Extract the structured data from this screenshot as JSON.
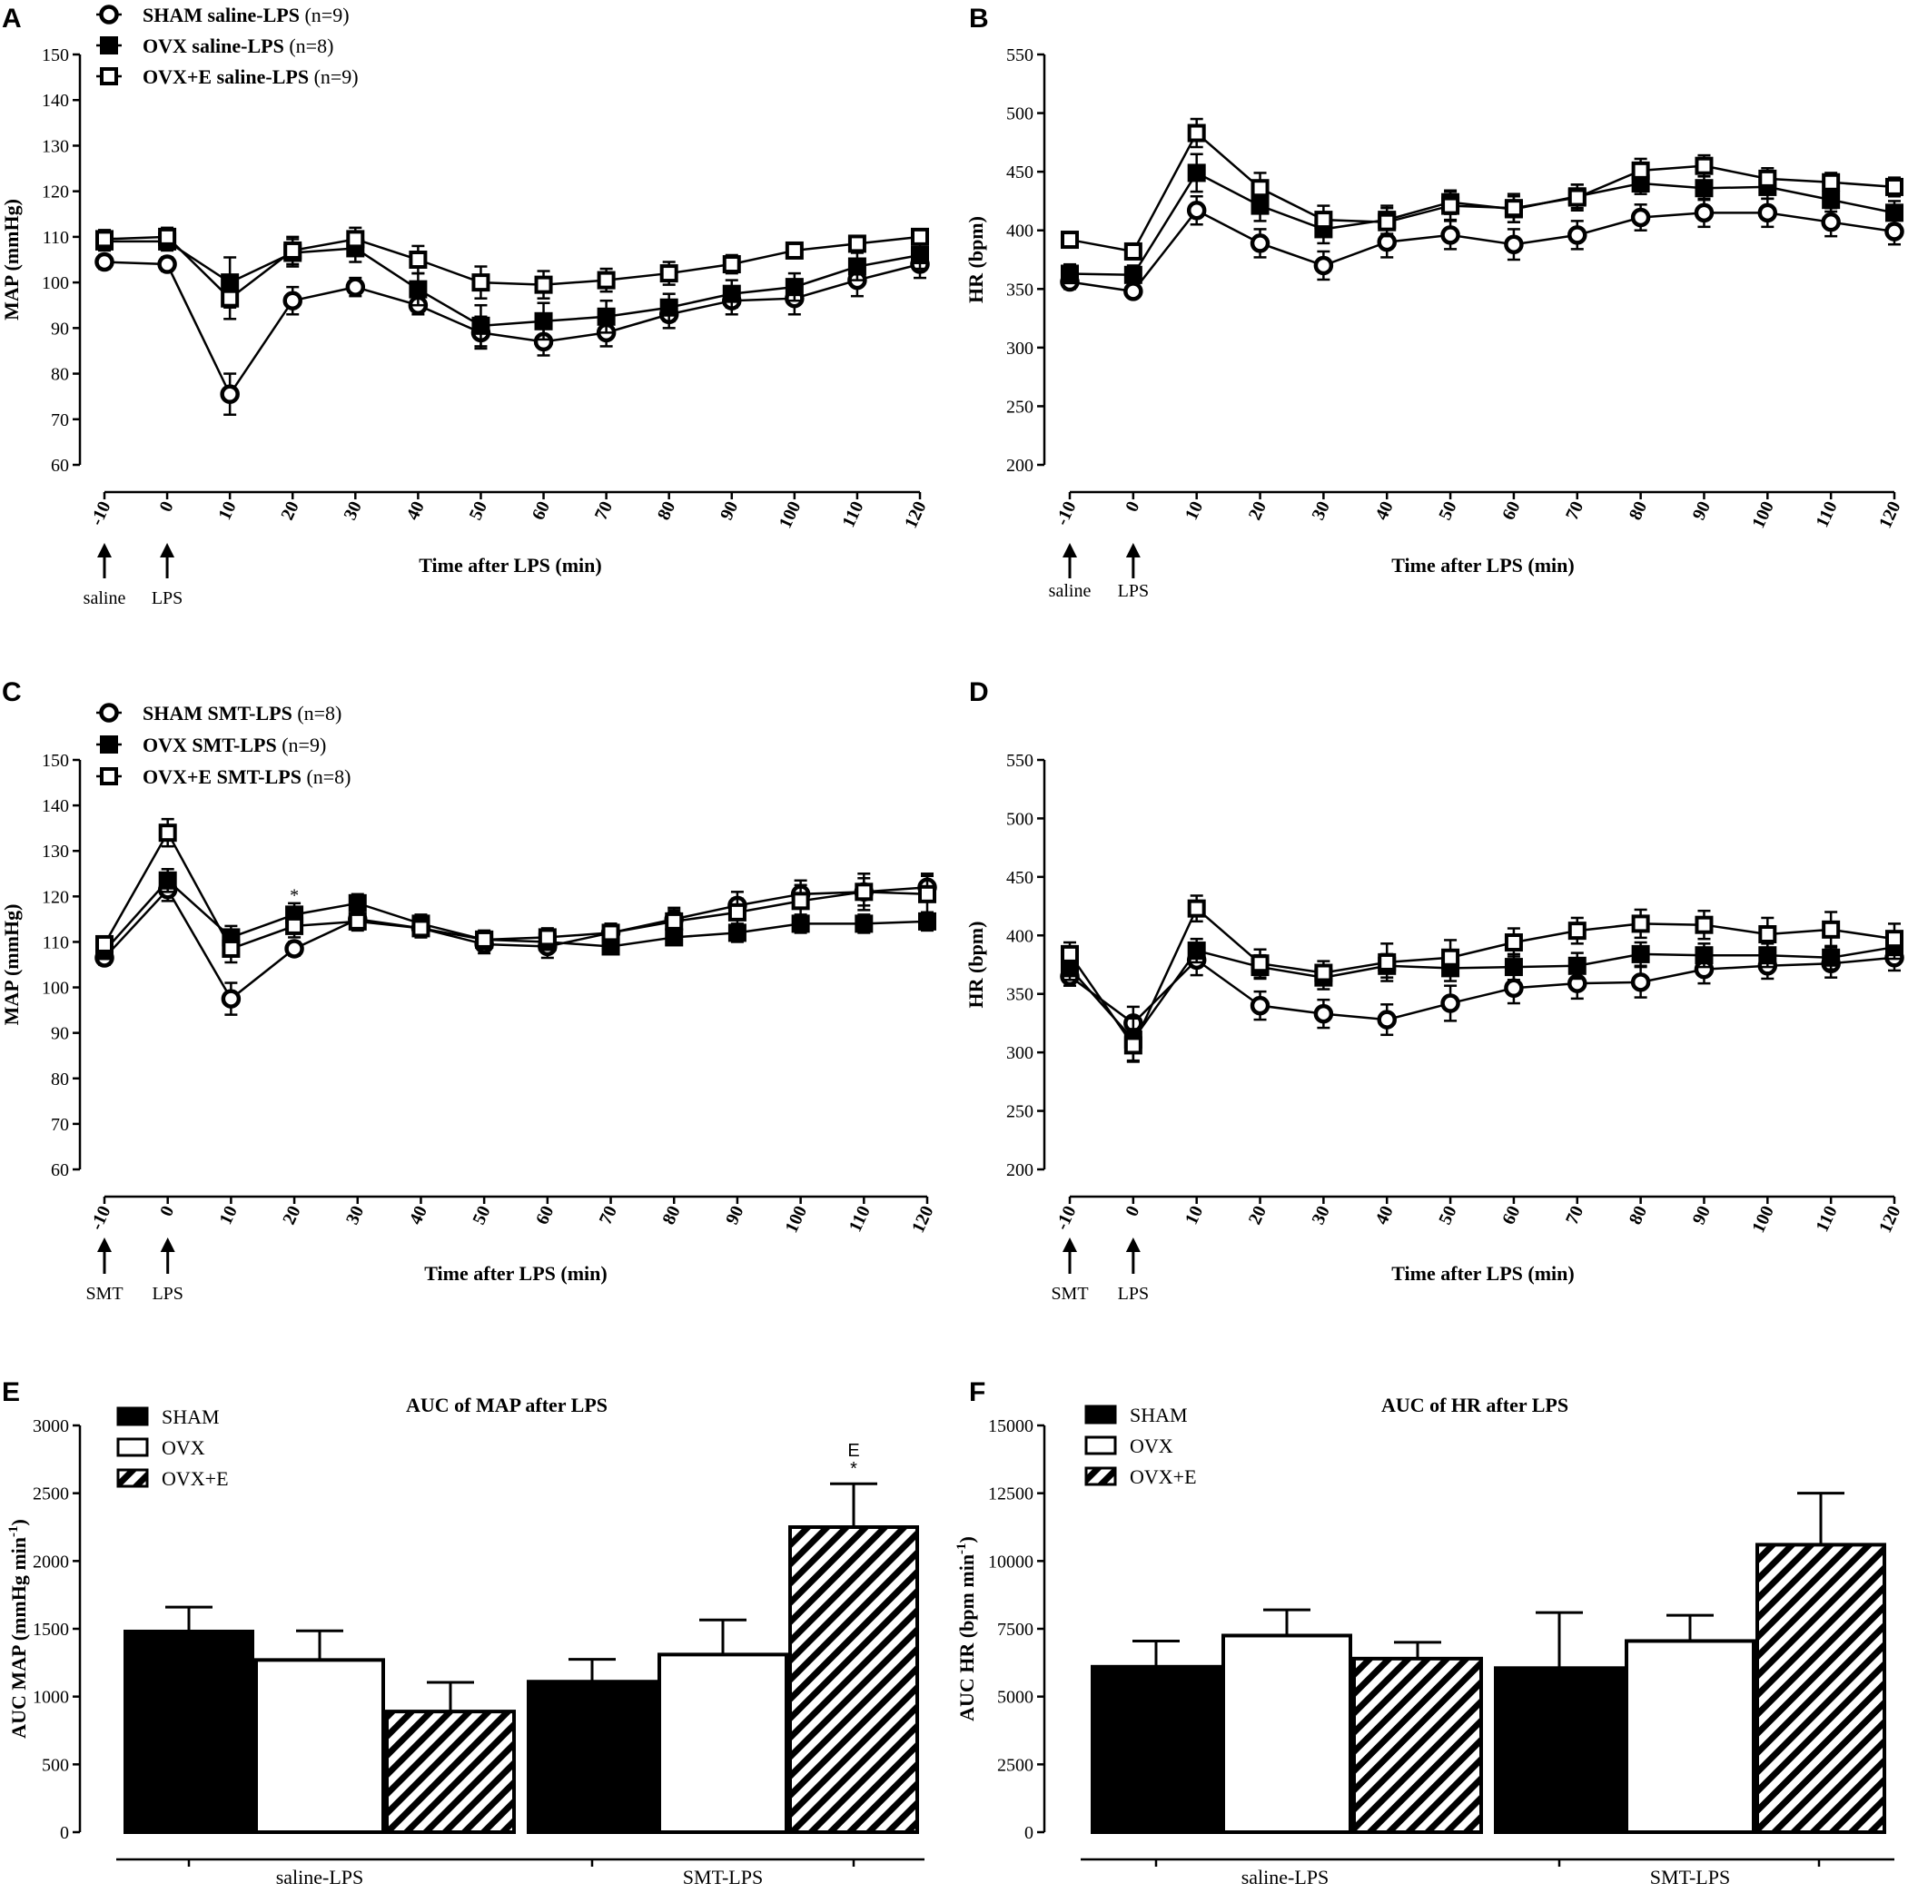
{
  "chart_data": [
    {
      "panel": "A",
      "type": "line",
      "ylabel": "MAP (mmHg)",
      "xlabel": "Time after LPS (min)",
      "ylim": [
        60,
        150
      ],
      "yticks": [
        60,
        70,
        80,
        90,
        100,
        110,
        120,
        130,
        140,
        150
      ],
      "x": [
        -10,
        0,
        10,
        20,
        30,
        40,
        50,
        60,
        70,
        80,
        90,
        100,
        110,
        120
      ],
      "x_tick_labels": [
        "-10",
        "0",
        "10",
        "20",
        "30",
        "40",
        "50",
        "60",
        "70",
        "80",
        "90",
        "100",
        "110",
        "120"
      ],
      "arrows": [
        {
          "x": -10,
          "label": "saline"
        },
        {
          "x": 0,
          "label": "LPS"
        }
      ],
      "series": [
        {
          "name": "SHAM saline-LPS",
          "n_label": "(n=9)",
          "marker": "circle",
          "values": [
            104.5,
            104,
            75.5,
            96,
            99,
            95,
            89,
            87,
            89,
            93,
            96,
            96.5,
            100.5,
            104
          ],
          "errors": [
            1.5,
            1.5,
            4.5,
            3,
            2,
            2,
            3.5,
            3,
            3,
            3,
            3,
            3.5,
            3.5,
            3
          ]
        },
        {
          "name": "OVX saline-LPS",
          "n_label": "(n=8)",
          "marker": "filled-square",
          "values": [
            109,
            109,
            100,
            106.5,
            107.5,
            98.5,
            90.5,
            91.5,
            92.5,
            94.5,
            97.5,
            99,
            103.5,
            106
          ],
          "errors": [
            2,
            2,
            5.5,
            3,
            3,
            3.5,
            4.5,
            4,
            3.5,
            3,
            3,
            3,
            3,
            3
          ]
        },
        {
          "name": "OVX+E saline-LPS",
          "n_label": "(n=9)",
          "marker": "open-square",
          "values": [
            109.5,
            110,
            96.5,
            107,
            109.5,
            105,
            100,
            99.5,
            100.5,
            102,
            104,
            107,
            108.5,
            110
          ],
          "errors": [
            2,
            2,
            4.5,
            3,
            2.5,
            3,
            3.5,
            3,
            2.5,
            2.5,
            2,
            1.5,
            1.5,
            1.5
          ]
        }
      ]
    },
    {
      "panel": "B",
      "type": "line",
      "ylabel": "HR (bpm)",
      "xlabel": "Time after LPS (min)",
      "ylim": [
        200,
        550
      ],
      "yticks": [
        200,
        250,
        300,
        350,
        400,
        450,
        500,
        550
      ],
      "x": [
        -10,
        0,
        10,
        20,
        30,
        40,
        50,
        60,
        70,
        80,
        90,
        100,
        110,
        120
      ],
      "x_tick_labels": [
        "-10",
        "0",
        "10",
        "20",
        "30",
        "40",
        "50",
        "60",
        "70",
        "80",
        "90",
        "100",
        "110",
        "120"
      ],
      "arrows": [
        {
          "x": -10,
          "label": "saline"
        },
        {
          "x": 0,
          "label": "LPS"
        }
      ],
      "series": [
        {
          "name": "SHAM saline-LPS",
          "marker": "circle",
          "values": [
            356,
            348,
            417,
            389,
            370,
            390,
            396,
            388,
            396,
            411,
            415,
            415,
            407,
            399
          ],
          "errors": [
            6,
            5,
            12,
            12,
            12,
            13,
            12,
            13,
            12,
            11,
            12,
            12,
            12,
            11
          ]
        },
        {
          "name": "OVX saline-LPS",
          "marker": "filled-square",
          "values": [
            363,
            362,
            449,
            421,
            401,
            409,
            424,
            418,
            429,
            440,
            436,
            437,
            426,
            415
          ],
          "errors": [
            8,
            8,
            16,
            13,
            12,
            12,
            10,
            11,
            10,
            9,
            10,
            10,
            10,
            10
          ]
        },
        {
          "name": "OVX+E saline-LPS",
          "marker": "open-square",
          "values": [
            392,
            382,
            483,
            436,
            409,
            407,
            421,
            419,
            428,
            451,
            455,
            444,
            441,
            437
          ],
          "errors": [
            6,
            6,
            12,
            13,
            12,
            12,
            12,
            12,
            11,
            10,
            9,
            9,
            8,
            8
          ]
        }
      ]
    },
    {
      "panel": "C",
      "type": "line",
      "ylabel": "MAP (mmHg)",
      "xlabel": "Time after LPS (min)",
      "ylim": [
        60,
        150
      ],
      "yticks": [
        60,
        70,
        80,
        90,
        100,
        110,
        120,
        130,
        140,
        150
      ],
      "x": [
        -10,
        0,
        10,
        20,
        30,
        40,
        50,
        60,
        70,
        80,
        90,
        100,
        110,
        120
      ],
      "x_tick_labels": [
        "-10",
        "0",
        "10",
        "20",
        "30",
        "40",
        "50",
        "60",
        "70",
        "80",
        "90",
        "100",
        "110",
        "120"
      ],
      "arrows": [
        {
          "x": -10,
          "label": "SMT"
        },
        {
          "x": 0,
          "label": "LPS"
        }
      ],
      "annotations": [
        {
          "x": 20,
          "y": 119,
          "text": "*"
        }
      ],
      "series": [
        {
          "name": "SHAM SMT-LPS",
          "n_label": "(n=8)",
          "marker": "circle",
          "values": [
            106.5,
            121.5,
            97.5,
            108.5,
            115,
            113,
            109.5,
            109,
            112,
            115,
            118,
            120.5,
            121,
            122
          ],
          "errors": [
            1.5,
            2.5,
            3.5,
            1.5,
            2,
            2,
            2,
            2.5,
            2,
            2.5,
            3,
            3,
            3,
            3
          ]
        },
        {
          "name": "OVX SMT-LPS",
          "n_label": "(n=9)",
          "marker": "filled-square",
          "values": [
            108,
            123.5,
            111,
            116,
            118.5,
            114,
            110.5,
            110,
            109,
            111,
            112,
            114,
            114,
            114.5
          ],
          "errors": [
            1.5,
            2.5,
            2.5,
            2.5,
            2,
            2,
            1.5,
            1.5,
            1.5,
            1.5,
            2,
            2,
            2,
            2
          ]
        },
        {
          "name": "OVX+E SMT-LPS",
          "n_label": "(n=8)",
          "marker": "open-square",
          "values": [
            109.5,
            134,
            108.5,
            113.5,
            114.5,
            113,
            110.5,
            111,
            112,
            114.5,
            116.5,
            119,
            121,
            120.5
          ],
          "errors": [
            1.5,
            3,
            3,
            2.5,
            2,
            2,
            2,
            2,
            2,
            2.5,
            3,
            3.5,
            4,
            4
          ]
        }
      ]
    },
    {
      "panel": "D",
      "type": "line",
      "ylabel": "HR (bpm)",
      "xlabel": "Time after LPS (min)",
      "ylim": [
        200,
        550
      ],
      "yticks": [
        200,
        250,
        300,
        350,
        400,
        450,
        500,
        550
      ],
      "x": [
        -10,
        0,
        10,
        20,
        30,
        40,
        50,
        60,
        70,
        80,
        90,
        100,
        110,
        120
      ],
      "x_tick_labels": [
        "-10",
        "0",
        "10",
        "20",
        "30",
        "40",
        "50",
        "60",
        "70",
        "80",
        "90",
        "100",
        "110",
        "120"
      ],
      "arrows": [
        {
          "x": -10,
          "label": "SMT"
        },
        {
          "x": 0,
          "label": "LPS"
        }
      ],
      "series": [
        {
          "name": "SHAM SMT-LPS",
          "marker": "circle",
          "values": [
            365,
            325,
            379,
            340,
            333,
            328,
            342,
            355,
            359,
            360,
            371,
            374,
            376,
            381
          ],
          "errors": [
            8,
            14,
            13,
            12,
            12,
            13,
            15,
            13,
            13,
            13,
            12,
            11,
            12,
            11
          ]
        },
        {
          "name": "OVX SMT-LPS",
          "marker": "filled-square",
          "values": [
            372,
            311,
            387,
            373,
            364,
            374,
            372,
            373,
            374,
            384,
            383,
            383,
            381,
            390
          ],
          "errors": [
            10,
            18,
            10,
            10,
            10,
            10,
            11,
            11,
            11,
            10,
            10,
            10,
            10,
            10
          ]
        },
        {
          "name": "OVX+E SMT-LPS",
          "marker": "open-square",
          "values": [
            384,
            306,
            423,
            376,
            368,
            377,
            381,
            394,
            404,
            410,
            409,
            401,
            405,
            397
          ],
          "errors": [
            10,
            14,
            11,
            12,
            10,
            16,
            15,
            12,
            11,
            12,
            12,
            14,
            15,
            13
          ]
        }
      ]
    },
    {
      "panel": "E",
      "type": "bar",
      "title": "AUC of MAP after LPS",
      "ylabel": "AUC MAP (mmHg min",
      "ylabel_sup": "-1",
      "ylabel_end": ")",
      "ylim": [
        0,
        3000
      ],
      "yticks": [
        0,
        500,
        1000,
        1500,
        2000,
        2500,
        3000
      ],
      "categories": [
        "saline-LPS",
        "SMT-LPS"
      ],
      "series": [
        {
          "name": "SHAM",
          "fill": "black",
          "values": [
            1480,
            1110
          ],
          "errors": [
            180,
            165
          ]
        },
        {
          "name": "OVX",
          "fill": "white",
          "values": [
            1270,
            1310
          ],
          "errors": [
            215,
            255
          ]
        },
        {
          "name": "OVX+E",
          "fill": "hatch",
          "values": [
            890,
            2250
          ],
          "errors": [
            215,
            320
          ]
        }
      ],
      "annotations": [
        {
          "category": "SMT-LPS",
          "series": "OVX+E",
          "lines": [
            "E",
            "*"
          ]
        }
      ]
    },
    {
      "panel": "F",
      "type": "bar",
      "title": "AUC of HR after LPS",
      "ylabel": "AUC HR (bpm min",
      "ylabel_sup": "-1",
      "ylabel_end": ")",
      "ylim": [
        0,
        15000
      ],
      "yticks": [
        0,
        2500,
        5000,
        7500,
        10000,
        12500,
        15000
      ],
      "categories": [
        "saline-LPS",
        "SMT-LPS"
      ],
      "series": [
        {
          "name": "SHAM",
          "fill": "black",
          "values": [
            6100,
            6050
          ],
          "errors": [
            950,
            2050
          ]
        },
        {
          "name": "OVX",
          "fill": "white",
          "values": [
            7250,
            7050
          ],
          "errors": [
            950,
            950
          ]
        },
        {
          "name": "OVX+E",
          "fill": "hatch",
          "values": [
            6400,
            10600
          ],
          "errors": [
            600,
            1900
          ]
        }
      ]
    }
  ]
}
